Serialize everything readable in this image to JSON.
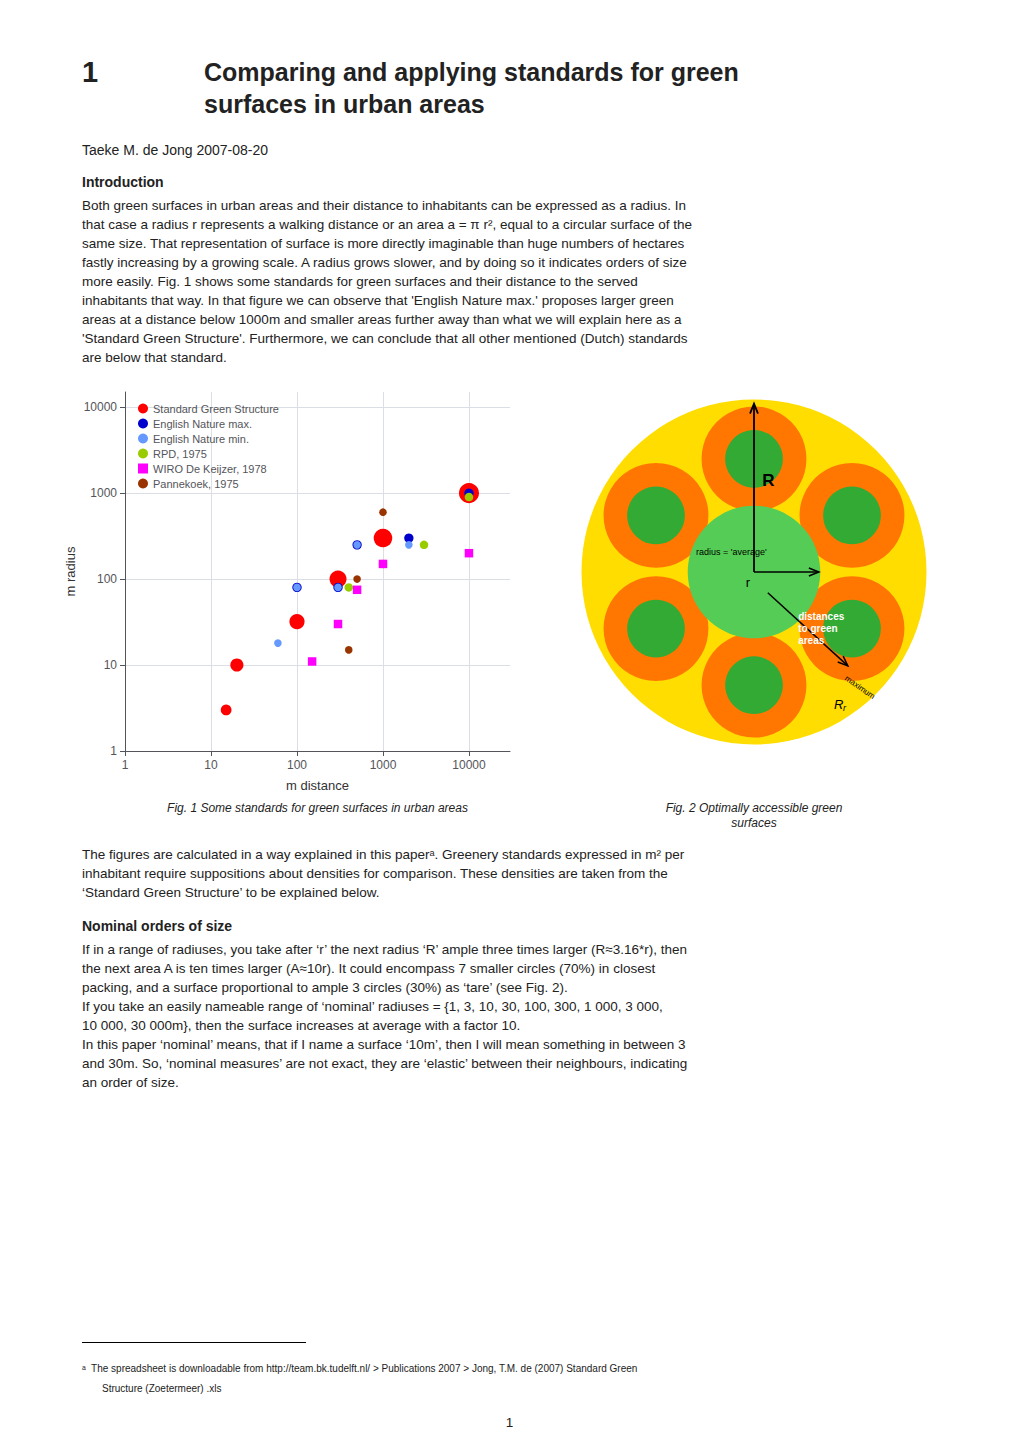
{
  "title_number": "1",
  "title": "Comparing and applying standards for green\nsurfaces in urban areas",
  "author_date": "Taeke M. de Jong 2007-08-20",
  "intro_heading": "Introduction",
  "intro_text": "Both green surfaces in urban areas and their distance to inhabitants can be expressed as a radius. In\nthat case a radius r represents a walking distance or an area a = π r², equal to a circular surface of the\nsame size. That representation of surface is more directly imaginable than huge numbers of hectares\nfastly increasing by a growing scale. A radius grows slower, and by doing so it indicates orders of size\nmore easily. Fig. 1 shows some standards for green surfaces and their distance to the served\ninhabitants that way. In that figure we can observe that 'English Nature max.' proposes larger green\nareas at a distance below 1000m and smaller areas further away than what we will explain here as a\n'Standard Green Structure'. Furthermore, we can conclude that all other mentioned (Dutch) standards\nare below that standard.",
  "post_text": "The figures are calculated in a way explained in this paperᵃ. Greenery standards expressed in m² per\ninhabitant require suppositions about densities for comparison. These densities are taken from the\n‘Standard Green Structure’ to be explained below.",
  "nominal_heading": "Nominal orders of size",
  "nominal_text": [
    "If in a range of radiuses, you take after ‘r’ the next radius ‘R’ ample three times larger (R≈3.16*r), then",
    "the next area A is ten times larger (A≈10r). It could encompass 7 smaller circles (70%) in closest\npacking, and a surface proportional to ample 3 circles (30%) as ‘tare’ (see Fig. 2).",
    "If you take an easily nameable range of ‘nominal’ radiuses = {1, 3, 10, 30, 100, 300, 1 000, 3 000,\n10 000, 30 000m}, then the surface increases at average with a factor 10.",
    "In this paper ‘nominal’ means, that if I name a surface ‘10m’, then I will mean something in between 3\nand 30m. So, ‘nominal measures’ are not exact, they are ‘elastic’ between their neighbours, indicating\nan order of size."
  ],
  "footnote_text1": "ᵃ  The spreadsheet is downloadable from http://team.bk.tudelft.nl/ > Publications 2007 > Jong, T.M. de (2007) Standard Green",
  "footnote_text2": "Structure (Zoetermeer) .xls",
  "page_number": "1",
  "chart_data": [
    {
      "type": "scatter",
      "caption": "Fig. 1 Some standards for green surfaces in urban areas",
      "xlabel": "m distance",
      "ylabel": "m radius",
      "log": true,
      "xlim": [
        1,
        30000
      ],
      "ylim": [
        1,
        15000
      ],
      "xticks": [
        1,
        10,
        100,
        1000,
        10000
      ],
      "yticks": [
        1,
        10,
        100,
        1000,
        10000
      ],
      "grid": true,
      "legend": "upper left",
      "series": [
        {
          "name": "Standard Green Structure",
          "color": "#ff0000",
          "marker": "circle",
          "x": [
            15,
            20,
            100,
            300,
            1000,
            10000
          ],
          "values": [
            3,
            10,
            32,
            100,
            300,
            1000
          ],
          "sizes": [
            80,
            120,
            160,
            200,
            240,
            280
          ]
        },
        {
          "name": "English Nature max.",
          "color": "#0000cc",
          "marker": "circle",
          "x": [
            100,
            300,
            500,
            2000,
            10000
          ],
          "values": [
            80,
            80,
            250,
            300,
            1000
          ],
          "sizes": [
            60,
            60,
            60,
            60,
            60
          ]
        },
        {
          "name": "English Nature min.",
          "color": "#6699ff",
          "marker": "circle",
          "x": [
            60,
            100,
            300,
            500,
            2000
          ],
          "values": [
            18,
            80,
            80,
            250,
            250
          ],
          "sizes": [
            40,
            40,
            40,
            40,
            40
          ]
        },
        {
          "name": "RPD, 1975",
          "color": "#99cc00",
          "marker": "circle",
          "x": [
            400,
            1000,
            3000,
            10000
          ],
          "values": [
            80,
            150,
            250,
            900
          ],
          "sizes": [
            50,
            50,
            50,
            50
          ]
        },
        {
          "name": "WIRO De Keijzer, 1978",
          "color": "#ff00ff",
          "marker": "square",
          "x": [
            150,
            300,
            500,
            1000,
            10000
          ],
          "values": [
            11,
            30,
            75,
            150,
            200
          ],
          "sizes": [
            50,
            50,
            50,
            50,
            50
          ]
        },
        {
          "name": "Pannekoek, 1975",
          "color": "#993300",
          "marker": "circle",
          "x": [
            400,
            500,
            1000
          ],
          "values": [
            15,
            100,
            600
          ],
          "sizes": [
            40,
            40,
            40
          ]
        }
      ]
    },
    {
      "type": "diagram",
      "caption": "Fig. 2 Optimally accessible green\nsurfaces",
      "colors": [
        "#ffdd00",
        "#ff7700",
        "#33aa33",
        "#55cc55"
      ],
      "color": "#000000",
      "annotations": [
        {
          "text": "R"
        },
        {
          "text": "radius = 'average'"
        },
        {
          "text": "r"
        },
        {
          "text": "distances\nto green\nareas"
        },
        {
          "text": "R",
          "subscript": "r"
        },
        {
          "text": "maximum"
        }
      ]
    }
  ]
}
